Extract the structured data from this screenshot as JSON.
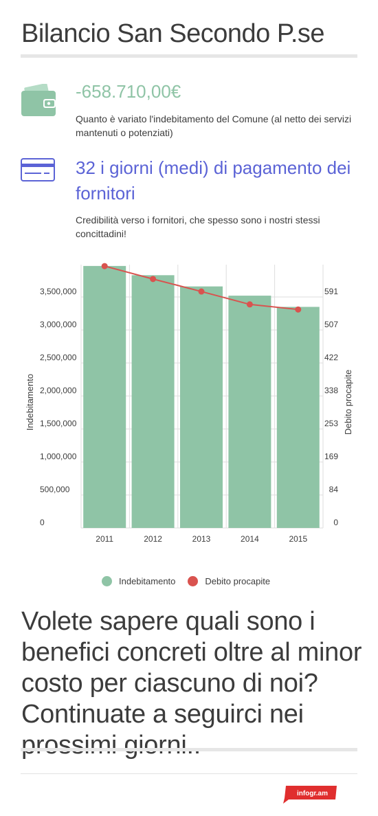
{
  "header": {
    "title": "Bilancio San Secondo P.se"
  },
  "stats": [
    {
      "icon": "wallet-icon",
      "value": "-658.710,00€",
      "description": "Quanto è variato l'indebitamento del Comune (al netto dei servizi mantenuti o potenziati)"
    },
    {
      "icon": "credit-card-icon",
      "value": "32 i giorni (medi) di pagamento dei fornitori",
      "description": "Credibilità verso i fornitori, che spesso sono i nostri stessi concittadini!"
    }
  ],
  "chart_data": {
    "type": "bar",
    "categories": [
      "2011",
      "2012",
      "2013",
      "2014",
      "2015"
    ],
    "series": [
      {
        "name": "Indebitamento",
        "type": "bar",
        "axis": "left",
        "color": "#8fc4a6",
        "values": [
          3970000,
          3830000,
          3660000,
          3520000,
          3350000
        ]
      },
      {
        "name": "Debito procapite",
        "type": "line",
        "axis": "right",
        "color": "#d9534f",
        "values": [
          670,
          637,
          605,
          572,
          559
        ]
      }
    ],
    "y_left": {
      "label": "Indebitamento",
      "ticks": [
        "0",
        "500,000",
        "1,000,000",
        "1,500,000",
        "2,000,000",
        "2,500,000",
        "3,000,000",
        "3,500,000"
      ],
      "tick_values": [
        0,
        500000,
        1000000,
        1500000,
        2000000,
        2500000,
        3000000,
        3500000
      ],
      "max": 4000000
    },
    "y_right": {
      "label": "Debito procapite",
      "ticks": [
        "0",
        "84",
        "169",
        "253",
        "338",
        "422",
        "507",
        "591"
      ],
      "tick_values": [
        0,
        84,
        169,
        253,
        338,
        422,
        507,
        591
      ],
      "max": 675
    },
    "grid": true,
    "legend_position": "bottom"
  },
  "legend": {
    "items": [
      {
        "label": "Indebitamento",
        "color": "#8fc4a6"
      },
      {
        "label": "Debito procapite",
        "color": "#d9534f"
      }
    ]
  },
  "cta": {
    "text": "Volete sapere quali sono i benefici concreti oltre al minor costo per ciascuno di noi? Continuate a seguirci nei prossimi giorni.."
  },
  "footer": {
    "brand": "infogr.am"
  }
}
